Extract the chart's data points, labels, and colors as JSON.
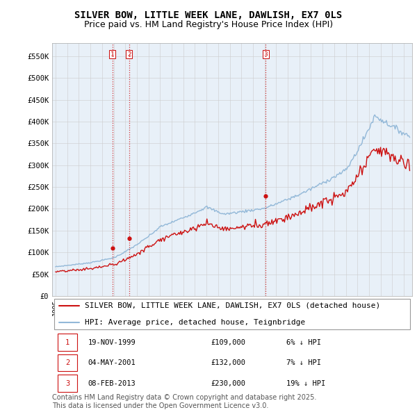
{
  "title": "SILVER BOW, LITTLE WEEK LANE, DAWLISH, EX7 0LS",
  "subtitle": "Price paid vs. HM Land Registry's House Price Index (HPI)",
  "ylim": [
    0,
    580000
  ],
  "yticks": [
    0,
    50000,
    100000,
    150000,
    200000,
    250000,
    300000,
    350000,
    400000,
    450000,
    500000,
    550000
  ],
  "ytick_labels": [
    "£0",
    "£50K",
    "£100K",
    "£150K",
    "£200K",
    "£250K",
    "£300K",
    "£350K",
    "£400K",
    "£450K",
    "£500K",
    "£550K"
  ],
  "hpi_color": "#92b8d8",
  "price_color": "#cc1111",
  "vline_color": "#cc1111",
  "grid_color": "#cccccc",
  "chart_bg": "#e8f0f8",
  "background_color": "#ffffff",
  "legend_label_price": "SILVER BOW, LITTLE WEEK LANE, DAWLISH, EX7 0LS (detached house)",
  "legend_label_hpi": "HPI: Average price, detached house, Teignbridge",
  "transactions": [
    {
      "num": 1,
      "date": "19-NOV-1999",
      "price": 109000,
      "pct": "6%",
      "dir": "↓",
      "x_year": 1999.88
    },
    {
      "num": 2,
      "date": "04-MAY-2001",
      "price": 132000,
      "pct": "7%",
      "dir": "↓",
      "x_year": 2001.33
    },
    {
      "num": 3,
      "date": "08-FEB-2013",
      "price": 230000,
      "pct": "19%",
      "dir": "↓",
      "x_year": 2013.1
    }
  ],
  "footer": "Contains HM Land Registry data © Crown copyright and database right 2025.\nThis data is licensed under the Open Government Licence v3.0.",
  "title_fontsize": 10,
  "subtitle_fontsize": 9,
  "tick_fontsize": 7.5,
  "legend_fontsize": 8,
  "footer_fontsize": 7,
  "xlim_start": 1994.7,
  "xlim_end": 2025.7,
  "x_ticks_start": 1995,
  "x_ticks_end": 2026
}
